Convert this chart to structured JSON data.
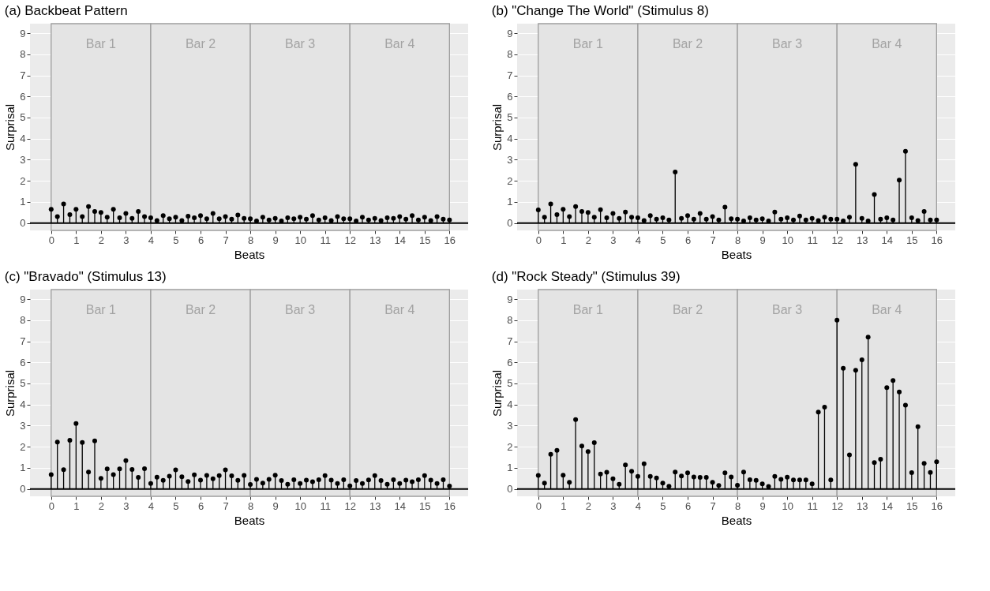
{
  "chart_data": [
    {
      "type": "lollipop",
      "title": "(a) Backbeat Pattern",
      "xlabel": "Beats",
      "ylabel": "Surprisal",
      "marker": "circle",
      "grid": true,
      "x": [
        0,
        0.25,
        0.5,
        0.75,
        1,
        1.25,
        1.5,
        1.75,
        2,
        2.25,
        2.5,
        2.75,
        3,
        3.25,
        3.5,
        3.75,
        4,
        4.25,
        4.5,
        4.75,
        5,
        5.25,
        5.5,
        5.75,
        6,
        6.25,
        6.5,
        6.75,
        7,
        7.25,
        7.5,
        7.75,
        8,
        8.25,
        8.5,
        8.75,
        9,
        9.25,
        9.5,
        9.75,
        10,
        10.25,
        10.5,
        10.75,
        11,
        11.25,
        11.5,
        11.75,
        12,
        12.25,
        12.5,
        12.75,
        13,
        13.25,
        13.5,
        13.75,
        14,
        14.25,
        14.5,
        14.75,
        15,
        15.25,
        15.5,
        15.75,
        16
      ],
      "series": [
        {
          "color": "#000000",
          "values": [
            0.65,
            0.3,
            0.9,
            0.4,
            0.65,
            0.3,
            0.78,
            0.55,
            0.5,
            0.28,
            0.65,
            0.25,
            0.45,
            0.22,
            0.55,
            0.3,
            0.25,
            0.12,
            0.35,
            0.2,
            0.28,
            0.12,
            0.32,
            0.25,
            0.35,
            0.2,
            0.45,
            0.2,
            0.3,
            0.18,
            0.38,
            0.22,
            0.2,
            0.1,
            0.28,
            0.15,
            0.22,
            0.1,
            0.25,
            0.2,
            0.28,
            0.18,
            0.35,
            0.15,
            0.25,
            0.12,
            0.3,
            0.2,
            0.2,
            0.1,
            0.28,
            0.15,
            0.22,
            0.12,
            0.25,
            0.22,
            0.3,
            0.18,
            0.35,
            0.15,
            0.28,
            0.12,
            0.3,
            0.18,
            0.15
          ]
        }
      ],
      "xlim": [
        -0.85,
        16.75
      ],
      "xticks": [
        0,
        1,
        2,
        3,
        4,
        5,
        6,
        7,
        8,
        9,
        10,
        11,
        12,
        13,
        14,
        15,
        16
      ],
      "ylim": [
        -0.35,
        9.45
      ],
      "yticks": [
        0,
        1,
        2,
        3,
        4,
        5,
        6,
        7,
        8,
        9
      ],
      "ref_lines": [
        {
          "axis": "y",
          "value": 0,
          "color": "#000000"
        }
      ],
      "bands": [
        {
          "axis": "x",
          "from": 0,
          "to": 4,
          "label": "Bar 1",
          "color": "#e4e4e4"
        },
        {
          "axis": "x",
          "from": 4,
          "to": 8,
          "label": "Bar 2",
          "color": "#e4e4e4"
        },
        {
          "axis": "x",
          "from": 8,
          "to": 12,
          "label": "Bar 3",
          "color": "#e4e4e4"
        },
        {
          "axis": "x",
          "from": 12,
          "to": 16,
          "label": "Bar 4",
          "color": "#e4e4e4"
        }
      ]
    },
    {
      "type": "lollipop",
      "title": "(b) \"Change The World\" (Stimulus 8)",
      "xlabel": "Beats",
      "ylabel": "Surprisal",
      "marker": "circle",
      "grid": true,
      "x": [
        0,
        0.25,
        0.5,
        0.75,
        1,
        1.25,
        1.5,
        1.75,
        2,
        2.25,
        2.5,
        2.75,
        3,
        3.25,
        3.5,
        3.75,
        4,
        4.25,
        4.5,
        4.75,
        5,
        5.25,
        5.5,
        5.75,
        6,
        6.25,
        6.5,
        6.75,
        7,
        7.25,
        7.5,
        7.75,
        8,
        8.25,
        8.5,
        8.75,
        9,
        9.25,
        9.5,
        9.75,
        10,
        10.25,
        10.5,
        10.75,
        11,
        11.25,
        11.5,
        11.75,
        12,
        12.25,
        12.5,
        12.75,
        13,
        13.25,
        13.5,
        13.75,
        14,
        14.25,
        14.5,
        14.75,
        15,
        15.25,
        15.5,
        15.75,
        16
      ],
      "series": [
        {
          "color": "#000000",
          "values": [
            0.62,
            0.28,
            0.9,
            0.4,
            0.65,
            0.3,
            0.78,
            0.55,
            0.5,
            0.28,
            0.63,
            0.25,
            0.45,
            0.22,
            0.52,
            0.28,
            0.25,
            0.12,
            0.35,
            0.18,
            0.25,
            0.15,
            2.42,
            0.22,
            0.35,
            0.18,
            0.45,
            0.18,
            0.3,
            0.15,
            0.75,
            0.2,
            0.18,
            0.1,
            0.25,
            0.15,
            0.2,
            0.1,
            0.52,
            0.18,
            0.25,
            0.15,
            0.33,
            0.15,
            0.22,
            0.12,
            0.28,
            0.18,
            0.18,
            0.1,
            0.28,
            2.78,
            0.22,
            0.1,
            1.35,
            0.18,
            0.25,
            0.15,
            2.03,
            3.4,
            0.25,
            0.12,
            0.55,
            0.15,
            0.15
          ]
        }
      ],
      "xlim": [
        -0.85,
        16.75
      ],
      "xticks": [
        0,
        1,
        2,
        3,
        4,
        5,
        6,
        7,
        8,
        9,
        10,
        11,
        12,
        13,
        14,
        15,
        16
      ],
      "ylim": [
        -0.35,
        9.45
      ],
      "yticks": [
        0,
        1,
        2,
        3,
        4,
        5,
        6,
        7,
        8,
        9
      ],
      "ref_lines": [
        {
          "axis": "y",
          "value": 0,
          "color": "#000000"
        }
      ],
      "bands": [
        {
          "axis": "x",
          "from": 0,
          "to": 4,
          "label": "Bar 1",
          "color": "#e4e4e4"
        },
        {
          "axis": "x",
          "from": 4,
          "to": 8,
          "label": "Bar 2",
          "color": "#e4e4e4"
        },
        {
          "axis": "x",
          "from": 8,
          "to": 12,
          "label": "Bar 3",
          "color": "#e4e4e4"
        },
        {
          "axis": "x",
          "from": 12,
          "to": 16,
          "label": "Bar 4",
          "color": "#e4e4e4"
        }
      ]
    },
    {
      "type": "lollipop",
      "title": "(c) \"Bravado\" (Stimulus 13)",
      "xlabel": "Beats",
      "ylabel": "Surprisal",
      "marker": "circle",
      "grid": true,
      "x": [
        0,
        0.25,
        0.5,
        0.75,
        1,
        1.25,
        1.5,
        1.75,
        2,
        2.25,
        2.5,
        2.75,
        3,
        3.25,
        3.5,
        3.75,
        4,
        4.25,
        4.5,
        4.75,
        5,
        5.25,
        5.5,
        5.75,
        6,
        6.25,
        6.5,
        6.75,
        7,
        7.25,
        7.5,
        7.75,
        8,
        8.25,
        8.5,
        8.75,
        9,
        9.25,
        9.5,
        9.75,
        10,
        10.25,
        10.5,
        10.75,
        11,
        11.25,
        11.5,
        11.75,
        12,
        12.25,
        12.5,
        12.75,
        13,
        13.25,
        13.5,
        13.75,
        14,
        14.25,
        14.5,
        14.75,
        15,
        15.25,
        15.5,
        15.75,
        16
      ],
      "series": [
        {
          "color": "#000000",
          "values": [
            0.68,
            2.22,
            0.91,
            2.31,
            3.1,
            2.2,
            0.8,
            2.28,
            0.5,
            0.95,
            0.68,
            0.95,
            1.34,
            0.92,
            0.55,
            0.96,
            0.26,
            0.56,
            0.41,
            0.6,
            0.9,
            0.58,
            0.35,
            0.67,
            0.42,
            0.64,
            0.48,
            0.63,
            0.9,
            0.62,
            0.41,
            0.64,
            0.21,
            0.45,
            0.28,
            0.45,
            0.65,
            0.4,
            0.22,
            0.44,
            0.26,
            0.42,
            0.34,
            0.44,
            0.63,
            0.42,
            0.26,
            0.44,
            0.15,
            0.4,
            0.26,
            0.43,
            0.63,
            0.4,
            0.22,
            0.44,
            0.26,
            0.42,
            0.34,
            0.44,
            0.63,
            0.42,
            0.26,
            0.44,
            0.14
          ]
        }
      ],
      "xlim": [
        -0.85,
        16.75
      ],
      "xticks": [
        0,
        1,
        2,
        3,
        4,
        5,
        6,
        7,
        8,
        9,
        10,
        11,
        12,
        13,
        14,
        15,
        16
      ],
      "ylim": [
        -0.35,
        9.45
      ],
      "yticks": [
        0,
        1,
        2,
        3,
        4,
        5,
        6,
        7,
        8,
        9
      ],
      "ref_lines": [
        {
          "axis": "y",
          "value": 0,
          "color": "#000000"
        }
      ],
      "bands": [
        {
          "axis": "x",
          "from": 0,
          "to": 4,
          "label": "Bar 1",
          "color": "#e4e4e4"
        },
        {
          "axis": "x",
          "from": 4,
          "to": 8,
          "label": "Bar 2",
          "color": "#e4e4e4"
        },
        {
          "axis": "x",
          "from": 8,
          "to": 12,
          "label": "Bar 3",
          "color": "#e4e4e4"
        },
        {
          "axis": "x",
          "from": 12,
          "to": 16,
          "label": "Bar 4",
          "color": "#e4e4e4"
        }
      ]
    },
    {
      "type": "lollipop",
      "title": "(d) \"Rock Steady\" (Stimulus 39)",
      "xlabel": "Beats",
      "ylabel": "Surprisal",
      "marker": "circle",
      "grid": true,
      "x": [
        0,
        0.25,
        0.5,
        0.75,
        1,
        1.25,
        1.5,
        1.75,
        2,
        2.25,
        2.5,
        2.75,
        3,
        3.25,
        3.5,
        3.75,
        4,
        4.25,
        4.5,
        4.75,
        5,
        5.25,
        5.5,
        5.75,
        6,
        6.25,
        6.5,
        6.75,
        7,
        7.25,
        7.5,
        7.75,
        8,
        8.25,
        8.5,
        8.75,
        9,
        9.25,
        9.5,
        9.75,
        10,
        10.25,
        10.5,
        10.75,
        11,
        11.25,
        11.5,
        11.75,
        12,
        12.25,
        12.5,
        12.75,
        13,
        13.25,
        13.5,
        13.75,
        14,
        14.25,
        14.5,
        14.75,
        15,
        15.25,
        15.5,
        15.75,
        16
      ],
      "series": [
        {
          "color": "#000000",
          "values": [
            0.64,
            0.28,
            1.64,
            1.83,
            0.65,
            0.31,
            3.29,
            2.03,
            1.77,
            2.19,
            0.71,
            0.79,
            0.48,
            0.22,
            1.14,
            0.84,
            0.59,
            1.19,
            0.59,
            0.52,
            0.28,
            0.13,
            0.8,
            0.61,
            0.76,
            0.57,
            0.55,
            0.55,
            0.31,
            0.16,
            0.76,
            0.57,
            0.17,
            0.8,
            0.44,
            0.41,
            0.24,
            0.12,
            0.59,
            0.45,
            0.56,
            0.43,
            0.43,
            0.43,
            0.24,
            3.64,
            3.88,
            0.43,
            8.0,
            5.72,
            1.61,
            5.63,
            6.12,
            7.2,
            1.25,
            1.41,
            4.8,
            5.14,
            4.6,
            3.97,
            0.77,
            2.95,
            1.21,
            0.78,
            1.29
          ]
        }
      ],
      "xlim": [
        -0.85,
        16.75
      ],
      "xticks": [
        0,
        1,
        2,
        3,
        4,
        5,
        6,
        7,
        8,
        9,
        10,
        11,
        12,
        13,
        14,
        15,
        16
      ],
      "ylim": [
        -0.35,
        9.45
      ],
      "yticks": [
        0,
        1,
        2,
        3,
        4,
        5,
        6,
        7,
        8,
        9
      ],
      "ref_lines": [
        {
          "axis": "y",
          "value": 0,
          "color": "#000000"
        }
      ],
      "bands": [
        {
          "axis": "x",
          "from": 0,
          "to": 4,
          "label": "Bar 1",
          "color": "#e4e4e4"
        },
        {
          "axis": "x",
          "from": 4,
          "to": 8,
          "label": "Bar 2",
          "color": "#e4e4e4"
        },
        {
          "axis": "x",
          "from": 8,
          "to": 12,
          "label": "Bar 3",
          "color": "#e4e4e4"
        },
        {
          "axis": "x",
          "from": 12,
          "to": 16,
          "label": "Bar 4",
          "color": "#e4e4e4"
        }
      ]
    }
  ]
}
